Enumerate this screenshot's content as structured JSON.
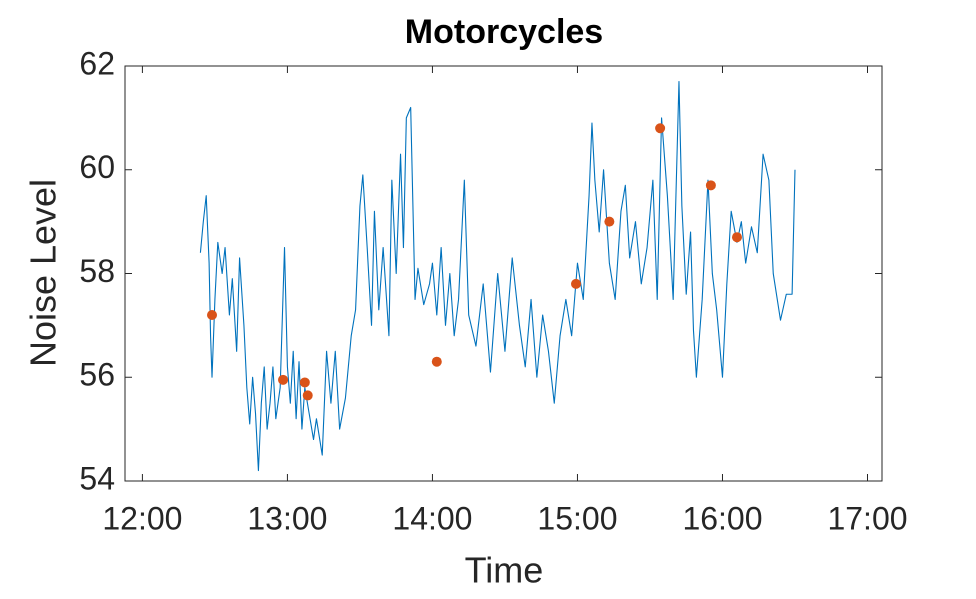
{
  "chart_data": {
    "type": "line",
    "title": "Motorcycles",
    "xlabel": "Time",
    "ylabel": "Noise Level",
    "xlim": [
      11.88,
      17.1
    ],
    "xticks": [
      {
        "value": 12,
        "label": "12:00"
      },
      {
        "value": 13,
        "label": "13:00"
      },
      {
        "value": 14,
        "label": "14:00"
      },
      {
        "value": 15,
        "label": "15:00"
      },
      {
        "value": 16,
        "label": "16:00"
      },
      {
        "value": 17,
        "label": "17:00"
      }
    ],
    "ylim": [
      54,
      62
    ],
    "yticks": [
      54,
      56,
      58,
      60,
      62
    ],
    "grid": false,
    "series": [
      {
        "type": "line",
        "color": "#0072bd",
        "x": [
          12.4,
          12.42,
          12.44,
          12.46,
          12.47,
          12.48,
          12.5,
          12.52,
          12.55,
          12.57,
          12.6,
          12.62,
          12.65,
          12.67,
          12.7,
          12.72,
          12.74,
          12.76,
          12.78,
          12.8,
          12.82,
          12.84,
          12.86,
          12.88,
          12.9,
          12.92,
          12.95,
          12.98,
          13.0,
          13.02,
          13.04,
          13.06,
          13.08,
          13.1,
          13.12,
          13.15,
          13.18,
          13.2,
          13.24,
          13.27,
          13.3,
          13.33,
          13.36,
          13.4,
          13.44,
          13.47,
          13.5,
          13.52,
          13.55,
          13.58,
          13.6,
          13.63,
          13.66,
          13.7,
          13.72,
          13.75,
          13.78,
          13.8,
          13.82,
          13.85,
          13.88,
          13.9,
          13.94,
          13.98,
          14.0,
          14.03,
          14.06,
          14.09,
          14.12,
          14.15,
          14.18,
          14.22,
          14.25,
          14.3,
          14.35,
          14.4,
          14.45,
          14.5,
          14.55,
          14.6,
          14.64,
          14.68,
          14.72,
          14.76,
          14.8,
          14.84,
          14.88,
          14.92,
          14.96,
          15.0,
          15.04,
          15.08,
          15.1,
          15.12,
          15.15,
          15.18,
          15.22,
          15.26,
          15.3,
          15.33,
          15.36,
          15.4,
          15.44,
          15.48,
          15.52,
          15.55,
          15.58,
          15.62,
          15.66,
          15.7,
          15.72,
          15.75,
          15.78,
          15.8,
          15.82,
          15.86,
          15.9,
          15.93,
          15.96,
          16.0,
          16.03,
          16.06,
          16.1,
          16.13,
          16.16,
          16.2,
          16.24,
          16.28,
          16.32,
          16.35,
          16.4,
          16.44,
          16.48,
          16.5
        ],
        "values": [
          58.4,
          59.0,
          59.5,
          58.2,
          56.8,
          56.0,
          57.5,
          58.6,
          58.0,
          58.5,
          57.2,
          57.9,
          56.5,
          58.3,
          57.0,
          55.8,
          55.1,
          56.0,
          55.3,
          54.2,
          55.5,
          56.2,
          55.0,
          55.5,
          56.2,
          55.2,
          55.8,
          58.5,
          56.2,
          55.5,
          56.5,
          55.2,
          56.3,
          55.0,
          55.8,
          55.3,
          54.8,
          55.2,
          54.5,
          56.5,
          55.5,
          56.5,
          55.0,
          55.6,
          56.8,
          57.3,
          59.3,
          59.9,
          58.5,
          57.0,
          59.2,
          57.3,
          58.5,
          56.8,
          59.8,
          58.0,
          60.3,
          58.5,
          61.0,
          61.2,
          57.5,
          58.1,
          57.4,
          57.8,
          58.2,
          57.2,
          58.5,
          57.0,
          58.0,
          56.8,
          57.5,
          59.8,
          57.2,
          56.6,
          57.8,
          56.1,
          58.0,
          56.5,
          58.3,
          57.0,
          56.2,
          57.5,
          56.0,
          57.2,
          56.5,
          55.5,
          56.8,
          57.5,
          56.8,
          58.2,
          57.5,
          59.5,
          60.9,
          59.8,
          58.8,
          60.0,
          58.2,
          57.5,
          59.2,
          59.7,
          58.3,
          59.0,
          57.8,
          58.5,
          59.8,
          57.5,
          61.0,
          59.5,
          57.5,
          61.7,
          59.3,
          57.6,
          58.8,
          56.9,
          56.0,
          57.5,
          59.8,
          58.0,
          57.3,
          56.0,
          57.8,
          59.2,
          58.6,
          59.0,
          58.2,
          58.9,
          58.4,
          60.3,
          59.8,
          58.0,
          57.1,
          57.6,
          57.6,
          60.0
        ]
      },
      {
        "type": "scatter",
        "color": "#d95319",
        "x": [
          12.48,
          12.97,
          13.12,
          13.14,
          14.03,
          14.99,
          15.22,
          15.57,
          15.92,
          16.1
        ],
        "values": [
          57.2,
          55.95,
          55.9,
          55.65,
          56.3,
          57.8,
          59.0,
          60.8,
          59.7,
          58.7
        ]
      }
    ]
  }
}
